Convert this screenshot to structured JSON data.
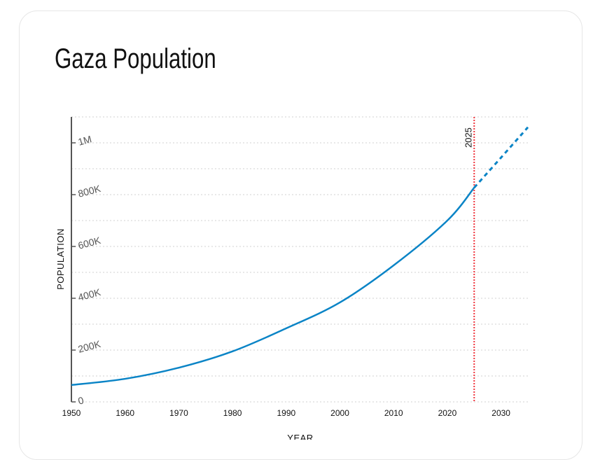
{
  "title": "Gaza Population",
  "chart_data": {
    "type": "line",
    "title": "Gaza Population",
    "xlabel": "YEAR",
    "ylabel": "POPULATION",
    "xlim": [
      1950,
      2035
    ],
    "ylim": [
      0,
      1100000
    ],
    "grid": true,
    "x_ticks": [
      "1950",
      "1960",
      "1970",
      "1980",
      "1990",
      "2000",
      "2010",
      "2020",
      "2030"
    ],
    "y_ticks": [
      {
        "value": 0,
        "label": "0"
      },
      {
        "value": 200000,
        "label": "200K"
      },
      {
        "value": 400000,
        "label": "400K"
      },
      {
        "value": 600000,
        "label": "600K"
      },
      {
        "value": 800000,
        "label": "800K"
      },
      {
        "value": 1000000,
        "label": "1M"
      }
    ],
    "series": [
      {
        "style": "solid",
        "color": "#0a84c6",
        "x": [
          1950,
          1960,
          1970,
          1980,
          1990,
          2000,
          2010,
          2020,
          2025
        ],
        "y": [
          65000,
          89000,
          132000,
          195000,
          284000,
          384000,
          527000,
          700000,
          827000
        ]
      },
      {
        "style": "dashed",
        "color": "#0a84c6",
        "x": [
          2025,
          2030,
          2035
        ],
        "y": [
          827000,
          943000,
          1060000
        ]
      }
    ],
    "annotations": [
      {
        "type": "vline",
        "x": 2025,
        "label": "2025",
        "color": "#f0343c"
      }
    ]
  }
}
